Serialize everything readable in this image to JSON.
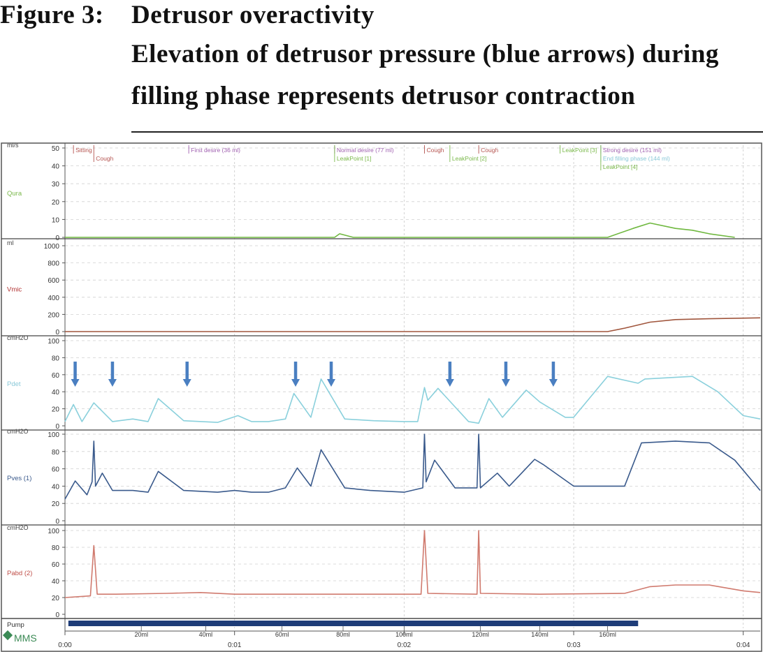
{
  "caption": {
    "figure": "Figure 3:",
    "title": "Detrusor overactivity",
    "line2": "Elevation of detrusor pressure (blue arrows) during",
    "line3": "filling phase represents detrusor contraction"
  },
  "chart_data": {
    "type": "line",
    "x_unit": "min",
    "x_range": [
      0,
      4.1
    ],
    "x_ticks": [
      {
        "value": 0,
        "label": "0:00"
      },
      {
        "value": 1,
        "label": "0:01"
      },
      {
        "value": 2,
        "label": "0:02"
      },
      {
        "value": 3,
        "label": "0:03"
      },
      {
        "value": 4,
        "label": "0:04"
      }
    ],
    "events": [
      {
        "label": "Sitting",
        "x": 0.05,
        "row": 0,
        "color": "#b5534f"
      },
      {
        "label": "Cough",
        "x": 0.17,
        "row": 1,
        "color": "#b5534f"
      },
      {
        "label": "First desire (36 ml)",
        "x": 0.73,
        "row": 0,
        "color": "#a060b0"
      },
      {
        "label": "Normal desire (77 ml)",
        "x": 1.59,
        "row": 0,
        "color": "#a060b0"
      },
      {
        "label": "LeakPoint [1]",
        "x": 1.59,
        "row": 1,
        "color": "#7ab84a"
      },
      {
        "label": "Cough",
        "x": 2.12,
        "row": 0,
        "color": "#b5534f"
      },
      {
        "label": "LeakPoint [2]",
        "x": 2.27,
        "row": 1,
        "color": "#7ab84a"
      },
      {
        "label": "Cough",
        "x": 2.44,
        "row": 0,
        "color": "#b5534f"
      },
      {
        "label": "LeakPoint [3]",
        "x": 2.92,
        "row": 0,
        "color": "#7ab84a"
      },
      {
        "label": "Strong desire (151 ml)",
        "x": 3.16,
        "row": 0,
        "color": "#a060b0"
      },
      {
        "label": "End filling phase (144 ml)",
        "x": 3.16,
        "row": 1,
        "color": "#8ac8d8"
      },
      {
        "label": "LeakPoint [4]",
        "x": 3.16,
        "row": 2,
        "color": "#7ab84a"
      }
    ],
    "channels": [
      {
        "name": "Qura",
        "unit": "ml/s",
        "ylim": [
          0,
          50
        ],
        "yticks": [
          0,
          10,
          20,
          30,
          40,
          50
        ],
        "color": "#6fb83f",
        "label_color": "#7ab84a",
        "x": [
          0,
          1.59,
          1.62,
          1.7,
          2.3,
          2.9,
          3.2,
          3.35,
          3.45,
          3.6,
          3.7,
          3.8,
          3.95
        ],
        "y": [
          0,
          0,
          2,
          0,
          0,
          0,
          0,
          5,
          8,
          5,
          4,
          2,
          0
        ]
      },
      {
        "name": "Vmic",
        "unit": "ml",
        "ylim": [
          0,
          1000
        ],
        "yticks": [
          0,
          200,
          400,
          600,
          800,
          1000
        ],
        "color": "#a0553c",
        "label_color": "#b03030",
        "x": [
          0,
          3.2,
          3.3,
          3.45,
          3.6,
          3.8,
          4.1
        ],
        "y": [
          0,
          0,
          40,
          110,
          140,
          150,
          160
        ]
      },
      {
        "name": "Pdet",
        "unit": "cmH2O",
        "ylim": [
          0,
          100
        ],
        "yticks": [
          0,
          20,
          40,
          60,
          80,
          100
        ],
        "color": "#8ad0dc",
        "label_color": "#8ac8d8",
        "x": [
          0,
          0.05,
          0.1,
          0.17,
          0.28,
          0.4,
          0.49,
          0.55,
          0.7,
          0.9,
          1.02,
          1.1,
          1.2,
          1.3,
          1.35,
          1.45,
          1.51,
          1.65,
          1.82,
          2.0,
          2.08,
          2.12,
          2.14,
          2.2,
          2.38,
          2.44,
          2.5,
          2.58,
          2.72,
          2.8,
          2.95,
          3.0,
          3.2,
          3.38,
          3.42,
          3.7,
          3.85,
          4.0,
          4.1
        ],
        "y": [
          5,
          25,
          5,
          27,
          5,
          8,
          5,
          32,
          6,
          4,
          12,
          5,
          5,
          8,
          38,
          10,
          55,
          8,
          6,
          5,
          5,
          45,
          30,
          44,
          5,
          3,
          32,
          10,
          42,
          28,
          10,
          10,
          58,
          50,
          55,
          58,
          40,
          12,
          8
        ]
      },
      {
        "name": "Pves (1)",
        "unit": "cmH2O",
        "ylim": [
          0,
          100
        ],
        "yticks": [
          0,
          20,
          40,
          60,
          80,
          100
        ],
        "color": "#3a5a8c",
        "label_color": "#3a5a8c",
        "x": [
          0,
          0.06,
          0.13,
          0.16,
          0.17,
          0.18,
          0.22,
          0.28,
          0.4,
          0.49,
          0.55,
          0.7,
          0.9,
          1.0,
          1.1,
          1.2,
          1.3,
          1.37,
          1.45,
          1.51,
          1.65,
          1.8,
          2.0,
          2.11,
          2.12,
          2.13,
          2.18,
          2.3,
          2.43,
          2.44,
          2.45,
          2.55,
          2.62,
          2.77,
          2.82,
          3.0,
          3.3,
          3.4,
          3.6,
          3.8,
          3.95,
          4.1
        ],
        "y": [
          25,
          46,
          30,
          45,
          92,
          40,
          55,
          35,
          35,
          33,
          57,
          35,
          33,
          35,
          33,
          33,
          38,
          61,
          40,
          82,
          38,
          35,
          33,
          38,
          100,
          45,
          70,
          38,
          38,
          100,
          38,
          55,
          40,
          71,
          65,
          40,
          40,
          90,
          92,
          90,
          70,
          35
        ]
      },
      {
        "name": "Pabd (2)",
        "unit": "cmH2O",
        "ylim": [
          0,
          100
        ],
        "yticks": [
          0,
          20,
          40,
          60,
          80,
          100
        ],
        "color": "#d07a6e",
        "label_color": "#c0504a",
        "x": [
          0,
          0.15,
          0.17,
          0.19,
          0.3,
          0.6,
          0.8,
          1.0,
          2.1,
          2.12,
          2.14,
          2.43,
          2.44,
          2.45,
          2.8,
          3.3,
          3.45,
          3.6,
          3.8,
          4.0,
          4.1
        ],
        "y": [
          20,
          22,
          82,
          24,
          24,
          25,
          26,
          24,
          24,
          100,
          25,
          24,
          100,
          25,
          24,
          25,
          33,
          35,
          35,
          28,
          26
        ]
      }
    ],
    "arrows_x": [
      0.06,
      0.28,
      0.72,
      1.36,
      1.57,
      2.27,
      2.6,
      2.88
    ],
    "pump": {
      "label": "Pump",
      "x_start": 0.02,
      "x_end": 3.38,
      "marks": [
        {
          "x": 0.45,
          "label": "20ml"
        },
        {
          "x": 0.83,
          "label": "40ml"
        },
        {
          "x": 1.28,
          "label": "60ml"
        },
        {
          "x": 1.64,
          "label": "80ml"
        },
        {
          "x": 2.0,
          "label": "100ml"
        },
        {
          "x": 2.45,
          "label": "120ml"
        },
        {
          "x": 2.8,
          "label": "140ml"
        },
        {
          "x": 3.2,
          "label": "160ml"
        }
      ]
    },
    "logo": "MMS"
  }
}
